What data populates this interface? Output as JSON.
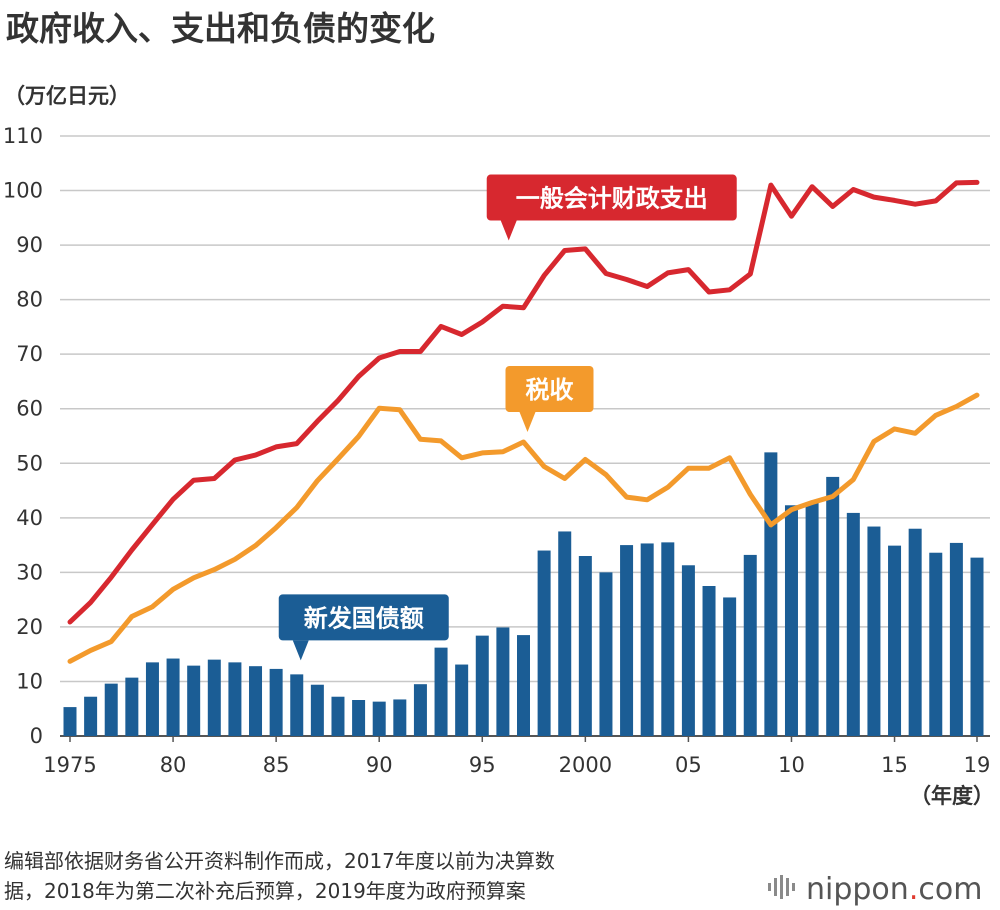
{
  "chart_data": {
    "type": "bar+line",
    "title": "政府收入、支出和负债的变化",
    "unit_label": "（万亿日元）",
    "x_unit_label": "（年度）",
    "ylim": [
      0,
      110
    ],
    "yticks": [
      0,
      10,
      20,
      30,
      40,
      50,
      60,
      70,
      80,
      90,
      100,
      110
    ],
    "grid": true,
    "years": [
      1975,
      1976,
      1977,
      1978,
      1979,
      1980,
      1981,
      1982,
      1983,
      1984,
      1985,
      1986,
      1987,
      1988,
      1989,
      1990,
      1991,
      1992,
      1993,
      1994,
      1995,
      1996,
      1997,
      1998,
      1999,
      2000,
      2001,
      2002,
      2003,
      2004,
      2005,
      2006,
      2007,
      2008,
      2009,
      2010,
      2011,
      2012,
      2013,
      2014,
      2015,
      2016,
      2017,
      2018,
      2019
    ],
    "xtick_labels": [
      {
        "year": 1975,
        "label": "1975"
      },
      {
        "year": 1980,
        "label": "80"
      },
      {
        "year": 1985,
        "label": "85"
      },
      {
        "year": 1990,
        "label": "90"
      },
      {
        "year": 1995,
        "label": "95"
      },
      {
        "year": 2000,
        "label": "2000"
      },
      {
        "year": 2005,
        "label": "05"
      },
      {
        "year": 2010,
        "label": "10"
      },
      {
        "year": 2015,
        "label": "15"
      },
      {
        "year": 2019,
        "label": "19"
      }
    ],
    "series": [
      {
        "name": "一般会计财政支出",
        "type": "line",
        "color": "#d7282f",
        "values": [
          20.9,
          24.5,
          29.1,
          34.1,
          38.8,
          43.4,
          46.9,
          47.2,
          50.6,
          51.5,
          53.0,
          53.6,
          57.7,
          61.5,
          65.9,
          69.3,
          70.5,
          70.5,
          75.1,
          73.6,
          75.9,
          78.8,
          78.5,
          84.4,
          89.0,
          89.3,
          84.8,
          83.7,
          82.4,
          84.9,
          85.5,
          81.4,
          81.8,
          84.7,
          101.0,
          95.3,
          100.7,
          97.1,
          100.2,
          98.8,
          98.2,
          97.5,
          98.1,
          101.4,
          101.5
        ],
        "callout_year": 1999
      },
      {
        "name": "税收",
        "type": "line",
        "color": "#f39a2c",
        "values": [
          13.7,
          15.7,
          17.3,
          21.9,
          23.7,
          26.9,
          29.0,
          30.5,
          32.4,
          34.9,
          38.2,
          41.9,
          46.8,
          50.8,
          54.9,
          60.1,
          59.8,
          54.4,
          54.1,
          51.0,
          51.9,
          52.1,
          53.9,
          49.4,
          47.2,
          50.7,
          47.9,
          43.8,
          43.3,
          45.6,
          49.1,
          49.1,
          51.0,
          44.3,
          38.7,
          41.5,
          42.8,
          43.9,
          47.0,
          54.0,
          56.3,
          55.5,
          58.8,
          60.4,
          62.5
        ],
        "callout_year": 1997
      },
      {
        "name": "新发国债额",
        "type": "bar",
        "color": "#1b5d95",
        "values": [
          5.3,
          7.2,
          9.6,
          10.7,
          13.5,
          14.2,
          12.9,
          14.0,
          13.5,
          12.8,
          12.3,
          11.3,
          9.4,
          7.2,
          6.6,
          6.3,
          6.7,
          9.5,
          16.2,
          13.1,
          18.4,
          19.9,
          18.5,
          34.0,
          37.5,
          33.0,
          30.0,
          35.0,
          35.3,
          35.5,
          31.3,
          27.5,
          25.4,
          33.2,
          52.0,
          42.3,
          42.8,
          47.5,
          40.9,
          38.4,
          34.9,
          38.0,
          33.6,
          35.4,
          32.7
        ],
        "callout_year": 1986
      }
    ],
    "source_note": [
      "编辑部依据财务省公开资料制作而成，2017年度以前为决算数",
      "据，2018年为第二次补充后预算，2019年度为政府预算案"
    ],
    "brand": {
      "name": "nippon",
      "dot": ".",
      "tld": "com"
    }
  }
}
